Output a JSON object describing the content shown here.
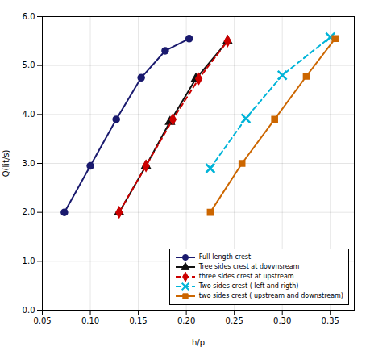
{
  "chart_data": {
    "type": "line",
    "x_label": "h/p",
    "y_label": "Q(lit/s)",
    "series": [
      {
        "name": "Full-length crest",
        "color": "#1a1a6e",
        "marker": "circle",
        "line_style": "solid",
        "x": [
          0.073,
          0.1,
          0.127,
          0.153,
          0.178,
          0.203
        ],
        "values": [
          2.0,
          2.95,
          3.9,
          4.75,
          5.3,
          5.55
        ]
      },
      {
        "name": "Tree sides crest at dovvnsream",
        "color": "#111111",
        "marker": "triangle",
        "line_style": "solid",
        "x": [
          0.13,
          0.158,
          0.183,
          0.21,
          0.243
        ],
        "values": [
          2.0,
          2.95,
          3.85,
          4.73,
          5.5
        ]
      },
      {
        "name": "three sides crest at upstream",
        "color": "#cc0000",
        "marker": "diamond",
        "line_style": "dashed",
        "x": [
          0.13,
          0.158,
          0.186,
          0.213,
          0.243
        ],
        "values": [
          2.0,
          2.95,
          3.9,
          4.73,
          5.5
        ]
      },
      {
        "name": "Two sides crest ( left and rigth)",
        "color": "#00b4d8",
        "marker": "x",
        "line_style": "dashed",
        "x": [
          0.225,
          0.262,
          0.3,
          0.35
        ],
        "values": [
          2.9,
          3.92,
          4.8,
          5.58
        ]
      },
      {
        "name": "two sides crest ( upstream and downstream)",
        "color": "#cc6600",
        "marker": "square",
        "line_style": "solid",
        "x": [
          0.225,
          0.258,
          0.292,
          0.325,
          0.355
        ],
        "values": [
          2.0,
          3.0,
          3.9,
          4.78,
          5.55
        ]
      }
    ],
    "xlim": [
      0.05,
      0.375
    ],
    "ylim": [
      0.0,
      6.0
    ],
    "xticks": [
      0.05,
      {
        "value": 0.1,
        "label": "0.10"
      },
      0.15,
      {
        "value": 0.2,
        "label": "0.20"
      },
      0.25,
      {
        "value": 0.3,
        "label": "0.30"
      },
      0.35
    ],
    "yticks": [
      {
        "value": 0,
        "label": "0.0"
      },
      {
        "value": 1,
        "label": "1.0"
      },
      {
        "value": 2,
        "label": "2.0"
      },
      {
        "value": 3,
        "label": "3.0"
      },
      {
        "value": 4,
        "label": "4.0"
      },
      {
        "value": 5,
        "label": "5.0"
      },
      {
        "value": 6,
        "label": "6.0"
      }
    ],
    "grid": true,
    "legend": "lower right"
  }
}
